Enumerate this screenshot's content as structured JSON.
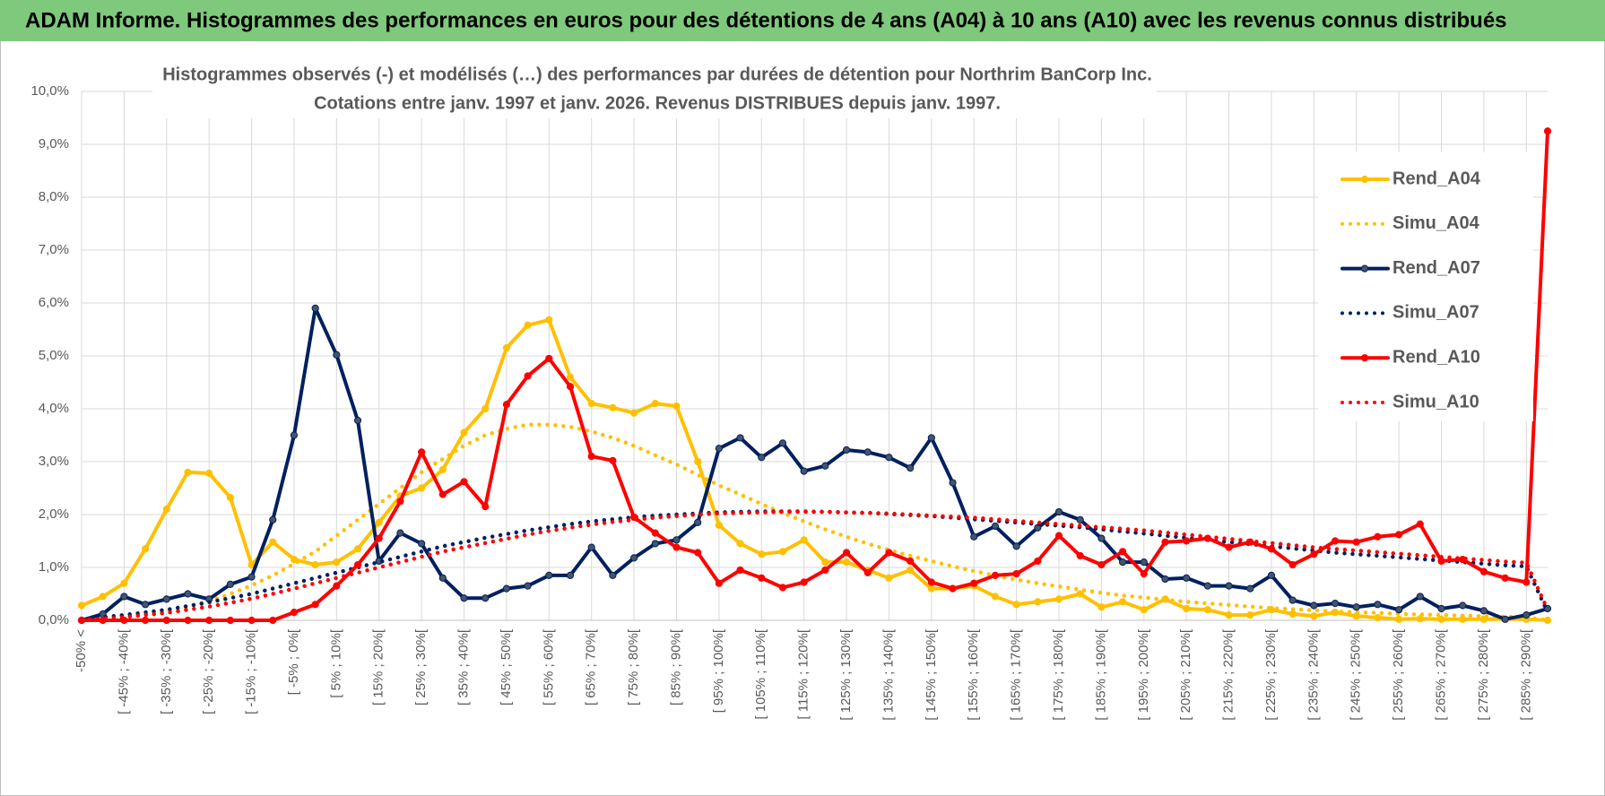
{
  "header": {
    "title": "ADAM Informe. Histogrammes des performances en euros pour des détentions de 4 ans (A04) à 10 ans (A10) avec les revenus connus distribués"
  },
  "chart_data": {
    "type": "line",
    "title": "Histogrammes observés (-) et modélisés (…) des performances par durées de détention pour Northrim BanCorp Inc.",
    "subtitle": "Cotations entre janv. 1997 et janv. 2026. Revenus DISTRIBUES depuis janv. 1997.",
    "categories": [
      "-50% <",
      null,
      "[ -45% ; -40%[",
      null,
      "[ -35% ; -30%[",
      null,
      "[ -25% ; -20%[",
      null,
      "[ -15% ; -10%[",
      null,
      "[ -5% ; 0%[",
      null,
      "[ 5% ; 10%[",
      null,
      "[ 15% ; 20%[",
      null,
      "[ 25% ; 30%[",
      null,
      "[ 35% ; 40%[",
      null,
      "[ 45% ; 50%[",
      null,
      "[ 55% ; 60%[",
      null,
      "[ 65% ; 70%[",
      null,
      "[ 75% ; 80%[",
      null,
      "[ 85% ; 90%[",
      null,
      "[ 95% ; 100%[",
      null,
      "[ 105% ; 110%[",
      null,
      "[ 115% ; 120%[",
      null,
      "[ 125% ; 130%[",
      null,
      "[ 135% ; 140%[",
      null,
      "[ 145% ; 150%[",
      null,
      "[ 155% ; 160%[",
      null,
      "[ 165% ; 170%[",
      null,
      "[ 175% ; 180%[",
      null,
      "[ 185% ; 190%[",
      null,
      "[ 195% ; 200%[",
      null,
      "[ 205% ; 210%[",
      null,
      "[ 215% ; 220%[",
      null,
      "[ 225% ; 230%[",
      null,
      "[ 235% ; 240%[",
      null,
      "[ 245% ; 250%[",
      null,
      "[ 255% ; 260%[",
      null,
      "[ 265% ; 270%[",
      null,
      "[ 275% ; 280%[",
      null,
      "[ 285% ; 290%[",
      null
    ],
    "series": [
      {
        "name": "Rend_A04",
        "color": "#ffc000",
        "dotted": false,
        "markers": true,
        "values": [
          0.28,
          0.45,
          0.7,
          1.35,
          2.1,
          2.8,
          2.78,
          2.32,
          1.05,
          1.48,
          1.15,
          1.05,
          1.1,
          1.35,
          1.85,
          2.35,
          2.5,
          2.85,
          3.55,
          4.0,
          5.15,
          5.58,
          5.68,
          4.6,
          4.1,
          4.02,
          3.92,
          4.1,
          4.05,
          3.0,
          1.8,
          1.45,
          1.25,
          1.3,
          1.52,
          1.1,
          1.1,
          0.95,
          0.8,
          0.95,
          0.6,
          0.6,
          0.65,
          0.45,
          0.3,
          0.35,
          0.4,
          0.5,
          0.25,
          0.35,
          0.2,
          0.4,
          0.22,
          0.2,
          0.1,
          0.1,
          0.2,
          0.12,
          0.08,
          0.15,
          0.08,
          0.05,
          0.02,
          0.03,
          0.02,
          0.02,
          0.02,
          0.02,
          0.02,
          0.0
        ]
      },
      {
        "name": "Simu_A04",
        "color": "#ffc000",
        "dotted": true,
        "markers": false,
        "values": [
          0.02,
          0.05,
          0.08,
          0.12,
          0.18,
          0.26,
          0.36,
          0.5,
          0.66,
          0.85,
          1.07,
          1.3,
          1.6,
          1.9,
          2.2,
          2.5,
          2.8,
          3.05,
          3.3,
          3.5,
          3.62,
          3.7,
          3.7,
          3.66,
          3.57,
          3.45,
          3.3,
          3.12,
          2.95,
          2.75,
          2.55,
          2.38,
          2.2,
          2.03,
          1.87,
          1.72,
          1.58,
          1.45,
          1.33,
          1.22,
          1.12,
          1.02,
          0.93,
          0.85,
          0.77,
          0.7,
          0.64,
          0.58,
          0.52,
          0.47,
          0.43,
          0.39,
          0.35,
          0.32,
          0.29,
          0.26,
          0.23,
          0.21,
          0.19,
          0.17,
          0.15,
          0.14,
          0.12,
          0.11,
          0.1,
          0.09,
          0.08,
          0.07,
          0.06,
          0.0
        ]
      },
      {
        "name": "Rend_A07",
        "color": "#002060",
        "dotted": false,
        "markers": true,
        "values": [
          0.0,
          0.12,
          0.45,
          0.3,
          0.4,
          0.5,
          0.4,
          0.68,
          0.82,
          1.9,
          3.5,
          5.9,
          5.02,
          3.78,
          1.12,
          1.65,
          1.45,
          0.8,
          0.42,
          0.42,
          0.6,
          0.65,
          0.85,
          0.85,
          1.38,
          0.85,
          1.18,
          1.45,
          1.52,
          1.85,
          3.25,
          3.45,
          3.08,
          3.35,
          2.82,
          2.92,
          3.22,
          3.18,
          3.08,
          2.88,
          3.45,
          2.6,
          1.58,
          1.78,
          1.4,
          1.75,
          2.05,
          1.9,
          1.55,
          1.1,
          1.1,
          0.78,
          0.8,
          0.65,
          0.65,
          0.6,
          0.85,
          0.38,
          0.28,
          0.32,
          0.25,
          0.3,
          0.2,
          0.45,
          0.22,
          0.28,
          0.18,
          0.02,
          0.1,
          0.22
        ]
      },
      {
        "name": "Simu_A07",
        "color": "#002060",
        "dotted": true,
        "markers": false,
        "values": [
          0.02,
          0.06,
          0.1,
          0.15,
          0.2,
          0.27,
          0.34,
          0.42,
          0.5,
          0.6,
          0.7,
          0.8,
          0.9,
          1.0,
          1.1,
          1.2,
          1.3,
          1.4,
          1.48,
          1.56,
          1.63,
          1.7,
          1.76,
          1.82,
          1.87,
          1.91,
          1.95,
          1.98,
          2.0,
          2.02,
          2.04,
          2.05,
          2.06,
          2.06,
          2.06,
          2.05,
          2.04,
          2.03,
          2.01,
          1.99,
          1.97,
          1.94,
          1.91,
          1.88,
          1.85,
          1.82,
          1.79,
          1.76,
          1.72,
          1.68,
          1.64,
          1.6,
          1.56,
          1.52,
          1.48,
          1.44,
          1.4,
          1.36,
          1.32,
          1.28,
          1.25,
          1.22,
          1.19,
          1.16,
          1.13,
          1.1,
          1.07,
          1.04,
          1.02,
          0.15
        ]
      },
      {
        "name": "Rend_A10",
        "color": "#ff0000",
        "dotted": false,
        "markers": true,
        "values": [
          0,
          0,
          0,
          0,
          0,
          0,
          0,
          0,
          0,
          0,
          0.15,
          0.3,
          0.65,
          1.05,
          1.55,
          2.25,
          3.18,
          2.38,
          2.62,
          2.15,
          4.08,
          4.62,
          4.95,
          4.42,
          3.1,
          3.02,
          1.95,
          1.65,
          1.38,
          1.28,
          0.7,
          0.95,
          0.8,
          0.62,
          0.72,
          0.95,
          1.28,
          0.9,
          1.28,
          1.12,
          0.72,
          0.6,
          0.7,
          0.85,
          0.88,
          1.12,
          1.6,
          1.22,
          1.05,
          1.3,
          0.88,
          1.48,
          1.5,
          1.55,
          1.38,
          1.48,
          1.35,
          1.05,
          1.25,
          1.5,
          1.48,
          1.58,
          1.62,
          1.82,
          1.12,
          1.15,
          0.92,
          0.8,
          0.72,
          9.25
        ]
      },
      {
        "name": "Simu_A10",
        "color": "#ff0000",
        "dotted": true,
        "markers": false,
        "values": [
          0.01,
          0.03,
          0.06,
          0.1,
          0.14,
          0.2,
          0.26,
          0.33,
          0.41,
          0.5,
          0.6,
          0.7,
          0.8,
          0.9,
          1.0,
          1.1,
          1.2,
          1.3,
          1.38,
          1.46,
          1.54,
          1.62,
          1.69,
          1.75,
          1.81,
          1.86,
          1.9,
          1.94,
          1.97,
          2.0,
          2.02,
          2.03,
          2.04,
          2.05,
          2.05,
          2.05,
          2.04,
          2.03,
          2.02,
          2.0,
          1.98,
          1.96,
          1.94,
          1.91,
          1.88,
          1.85,
          1.82,
          1.79,
          1.76,
          1.73,
          1.7,
          1.66,
          1.62,
          1.58,
          1.54,
          1.5,
          1.46,
          1.42,
          1.38,
          1.35,
          1.32,
          1.29,
          1.26,
          1.23,
          1.2,
          1.17,
          1.14,
          1.11,
          1.09,
          0.2
        ]
      }
    ],
    "ylim": [
      0,
      10
    ],
    "yticks": [
      {
        "value": 0,
        "label": "0,0%"
      },
      {
        "value": 1,
        "label": "1,0%"
      },
      {
        "value": 2,
        "label": "2,0%"
      },
      {
        "value": 3,
        "label": "3,0%"
      },
      {
        "value": 4,
        "label": "4,0%"
      },
      {
        "value": 5,
        "label": "5,0%"
      },
      {
        "value": 6,
        "label": "6,0%"
      },
      {
        "value": 7,
        "label": "7,0%"
      },
      {
        "value": 8,
        "label": "8,0%"
      },
      {
        "value": 9,
        "label": "9,0%"
      },
      {
        "value": 10,
        "label": "10,0%"
      }
    ],
    "grid": true,
    "legend": "right"
  }
}
